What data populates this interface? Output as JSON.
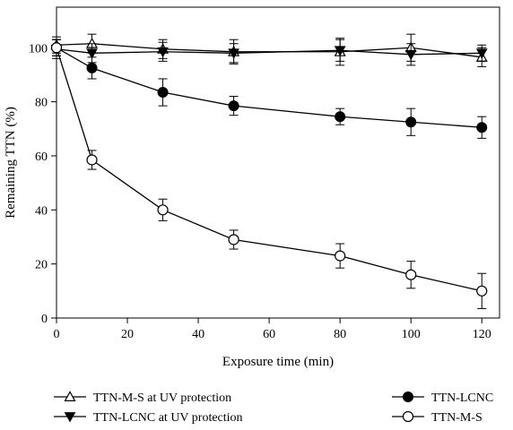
{
  "chart_data": {
    "type": "line",
    "title": "",
    "xlabel": "Exposure time (min)",
    "ylabel": "Remaining TTN (%)",
    "xlim": [
      0,
      125
    ],
    "ylim": [
      0,
      115
    ],
    "x_ticks": [
      0,
      20,
      40,
      60,
      80,
      100,
      120
    ],
    "y_ticks": [
      0,
      20,
      40,
      60,
      80,
      100
    ],
    "grid": false,
    "legend_position": "bottom",
    "series": [
      {
        "name": "TTN-M-S at UV protection",
        "marker": "open-triangle-up",
        "x": [
          0,
          10,
          30,
          50,
          80,
          100,
          120
        ],
        "y": [
          101,
          101.5,
          99.5,
          98.5,
          98.5,
          100,
          96.5
        ],
        "err": [
          3,
          3.5,
          3.5,
          4.5,
          5,
          5,
          3.5
        ]
      },
      {
        "name": "TTN-LCNC at UV protection",
        "marker": "filled-triangle-down",
        "x": [
          0,
          10,
          30,
          50,
          80,
          100,
          120
        ],
        "y": [
          99.5,
          98,
          98.5,
          98,
          99,
          97.5,
          98
        ],
        "err": [
          3.5,
          3.5,
          3.5,
          3.5,
          4,
          4,
          3
        ]
      },
      {
        "name": "TTN-LCNC",
        "marker": "filled-circle",
        "x": [
          0,
          10,
          30,
          50,
          80,
          100,
          120
        ],
        "y": [
          100,
          92.5,
          83.5,
          78.5,
          74.5,
          72.5,
          70.5
        ],
        "err": [
          3,
          4,
          5,
          3.5,
          3,
          5,
          4
        ]
      },
      {
        "name": "TTN-M-S",
        "marker": "open-circle",
        "x": [
          0,
          10,
          30,
          50,
          80,
          100,
          120
        ],
        "y": [
          100,
          58.5,
          40,
          29,
          23,
          16,
          10
        ],
        "err": [
          3,
          3.5,
          4,
          3.5,
          4.5,
          5,
          6.5
        ]
      }
    ]
  },
  "colors": {
    "ink": "#000000",
    "background": "#ffffff"
  }
}
